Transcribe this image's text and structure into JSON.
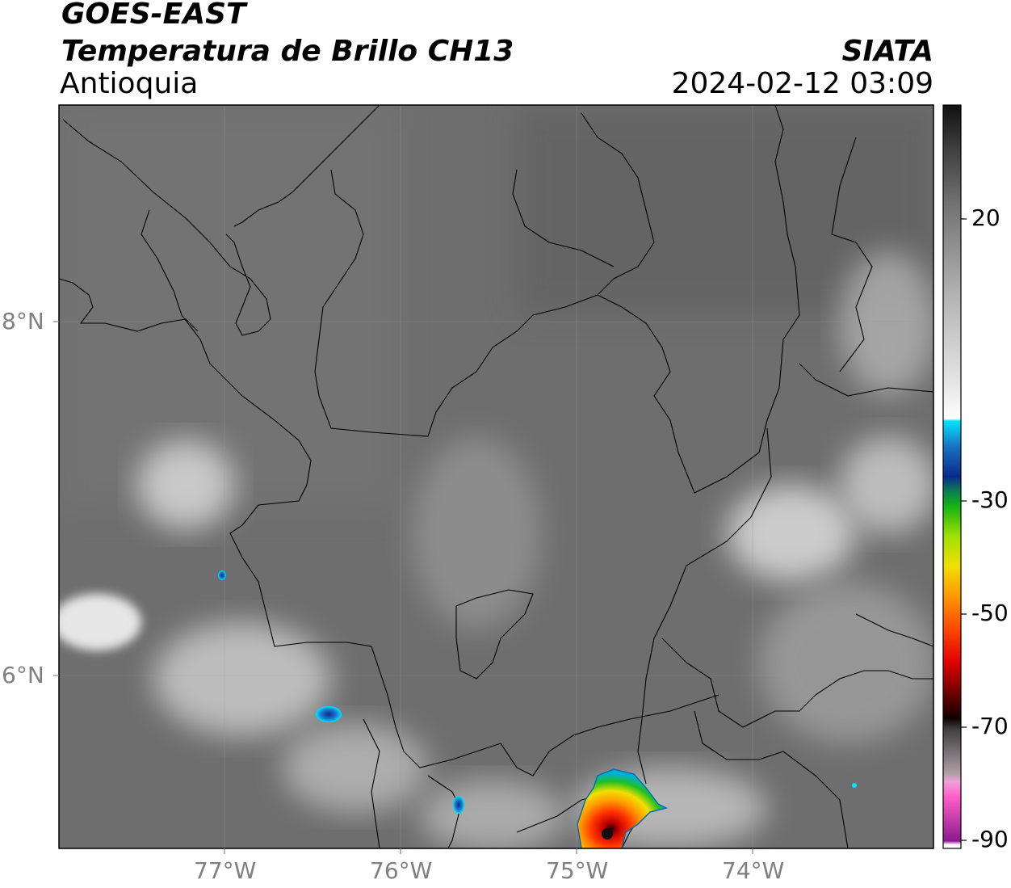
{
  "header": {
    "satellite": "GOES-EAST",
    "product": "Temperatura de Brillo CH13",
    "region": "Antioquia",
    "agency": "SIATA",
    "datetime": "2024-02-12 03:09"
  },
  "map": {
    "lat_labels": [
      "8°N",
      "6°N"
    ],
    "lon_labels": [
      "77°W",
      "76°W",
      "75°W",
      "74°W"
    ],
    "lon_range": [
      -77.95,
      -73.0
    ],
    "lat_range": [
      5.0,
      9.2
    ]
  },
  "colorbar": {
    "tick_labels": [
      "20",
      "-30",
      "-50",
      "-70",
      "-90"
    ],
    "colors": {
      "warm_gray_top": "#111111",
      "gray_mid": "#808080",
      "white": "#f8f8f8",
      "cyan": "#00e5ff",
      "blue": "#0a2a8a",
      "green": "#14b414",
      "yellow": "#f0e000",
      "orange": "#ff9a00",
      "red": "#e00000",
      "dark_red": "#400000",
      "pink": "#ff60c8",
      "purple": "#8c1a8c"
    }
  }
}
